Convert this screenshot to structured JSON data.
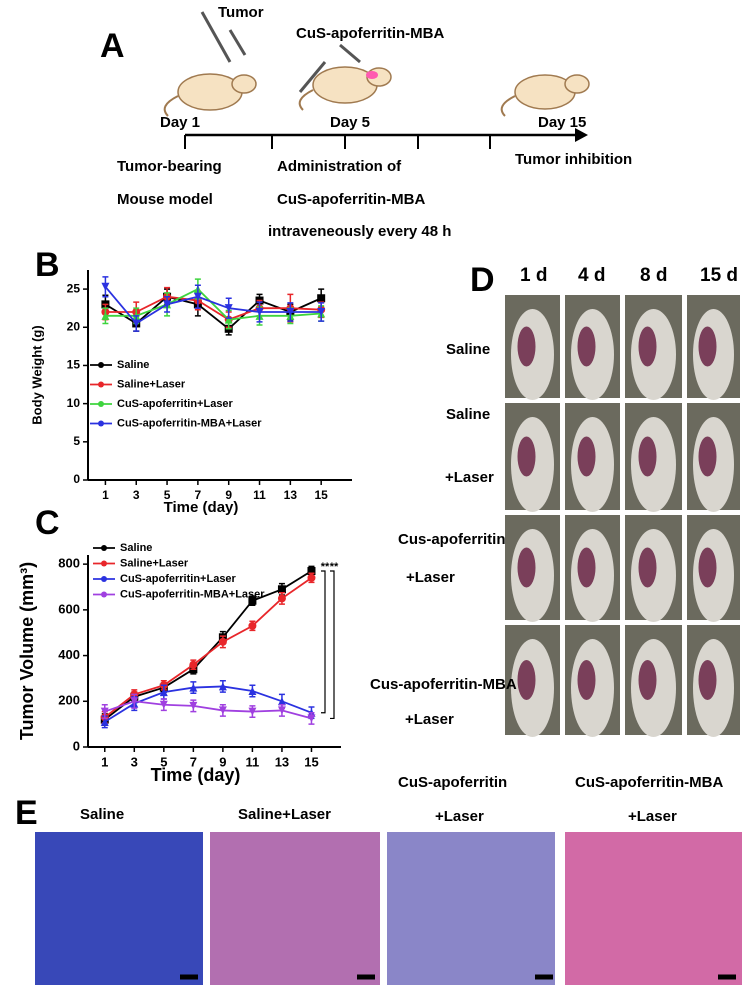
{
  "panels": {
    "a": {
      "letter": "A",
      "injection_1": "Tumor",
      "injection_2": "CuS-apoferritin-MBA",
      "days": [
        "Day 1",
        "Day 5",
        "Day 15"
      ],
      "steps": [
        [
          "Tumor-bearing",
          "Mouse model"
        ],
        [
          "Administration of",
          "CuS-apoferritin-MBA",
          "intraveneously every 48 h"
        ],
        [
          "Tumor inhibition"
        ]
      ]
    },
    "b": {
      "letter": "B"
    },
    "c": {
      "letter": "C"
    },
    "d": {
      "letter": "D",
      "columns": [
        "1 d",
        "4 d",
        "8 d",
        "15 d"
      ],
      "rows": [
        [
          "Saline"
        ],
        [
          "Saline",
          "+Laser"
        ],
        [
          "Cus-apoferritin",
          "+Laser"
        ],
        [
          "Cus-apoferritin-MBA",
          "+Laser"
        ]
      ]
    },
    "e": {
      "letter": "E",
      "labels": [
        [
          "Saline"
        ],
        [
          "Saline+Laser"
        ],
        [
          "CuS-apoferritin",
          "+Laser"
        ],
        [
          "CuS-apoferritin-MBA",
          "+Laser"
        ]
      ]
    }
  },
  "chart_data": [
    {
      "type": "line",
      "ylabel": "Body Weight (g)",
      "xlabel": "Time (day)",
      "x": [
        1,
        3,
        5,
        7,
        9,
        11,
        13,
        15
      ],
      "xlim": [
        0,
        17
      ],
      "xticks": [
        1,
        3,
        5,
        7,
        9,
        11,
        13,
        15
      ],
      "ylim": [
        0,
        27.5
      ],
      "yticks": [
        0,
        5,
        10,
        15,
        20,
        25
      ],
      "series": [
        {
          "name": "Saline",
          "color": "#000000",
          "marker": "square",
          "values": [
            23,
            20.5,
            24,
            23,
            19.8,
            23.5,
            22,
            23.8
          ],
          "errors": [
            1.2,
            1,
            1,
            1.5,
            0.8,
            0.8,
            1,
            1.2
          ]
        },
        {
          "name": "Saline+Laser",
          "color": "#e8262a",
          "marker": "circle",
          "values": [
            22,
            22,
            24,
            23.5,
            21,
            22.5,
            22.5,
            22.3
          ],
          "errors": [
            1,
            1.3,
            1.2,
            1.2,
            1,
            1,
            1.8,
            1
          ]
        },
        {
          "name": "CuS-apoferritin+Laser",
          "color": "#3ed43e",
          "marker": "triangle-up",
          "values": [
            21.5,
            21.5,
            23,
            25,
            21,
            21.5,
            21.5,
            21.8
          ],
          "errors": [
            1,
            1,
            1.5,
            1.3,
            1.2,
            1.2,
            1,
            1
          ]
        },
        {
          "name": "CuS-apoferritin-MBA+Laser",
          "color": "#2b32e0",
          "marker": "triangle-down",
          "values": [
            25.3,
            20.5,
            23,
            24,
            22.5,
            22,
            22,
            22
          ],
          "errors": [
            1.3,
            1,
            1,
            1.5,
            1.3,
            1.3,
            1.2,
            1.2
          ]
        }
      ]
    },
    {
      "type": "line",
      "ylabel": "Tumor Volume (mm³)",
      "xlabel": "Time (day)",
      "x": [
        1,
        3,
        5,
        7,
        9,
        11,
        13,
        15
      ],
      "xlim": [
        0,
        17
      ],
      "xticks": [
        1,
        3,
        5,
        7,
        9,
        11,
        13,
        15
      ],
      "ylim": [
        0,
        840
      ],
      "yticks": [
        0,
        200,
        400,
        600,
        800
      ],
      "annotations": [
        "**",
        "**"
      ],
      "series": [
        {
          "name": "Saline",
          "color": "#000000",
          "marker": "square",
          "values": [
            120,
            220,
            260,
            340,
            480,
            640,
            690,
            770
          ],
          "errors": [
            25,
            20,
            20,
            20,
            25,
            20,
            25,
            20
          ]
        },
        {
          "name": "Saline+Laser",
          "color": "#e8262a",
          "marker": "circle",
          "values": [
            130,
            230,
            270,
            360,
            460,
            530,
            650,
            740
          ],
          "errors": [
            25,
            20,
            20,
            20,
            25,
            20,
            25,
            20
          ]
        },
        {
          "name": "CuS-apoferritin+Laser",
          "color": "#2b32e0",
          "marker": "triangle-up",
          "values": [
            110,
            190,
            240,
            260,
            265,
            245,
            200,
            150
          ],
          "errors": [
            25,
            30,
            30,
            25,
            25,
            25,
            30,
            25
          ]
        },
        {
          "name": "CuS-apoferritin-MBA+Laser",
          "color": "#a040e0",
          "marker": "triangle-down",
          "values": [
            155,
            200,
            185,
            180,
            160,
            155,
            160,
            125
          ],
          "errors": [
            30,
            30,
            25,
            25,
            25,
            25,
            25,
            25
          ]
        }
      ]
    }
  ]
}
